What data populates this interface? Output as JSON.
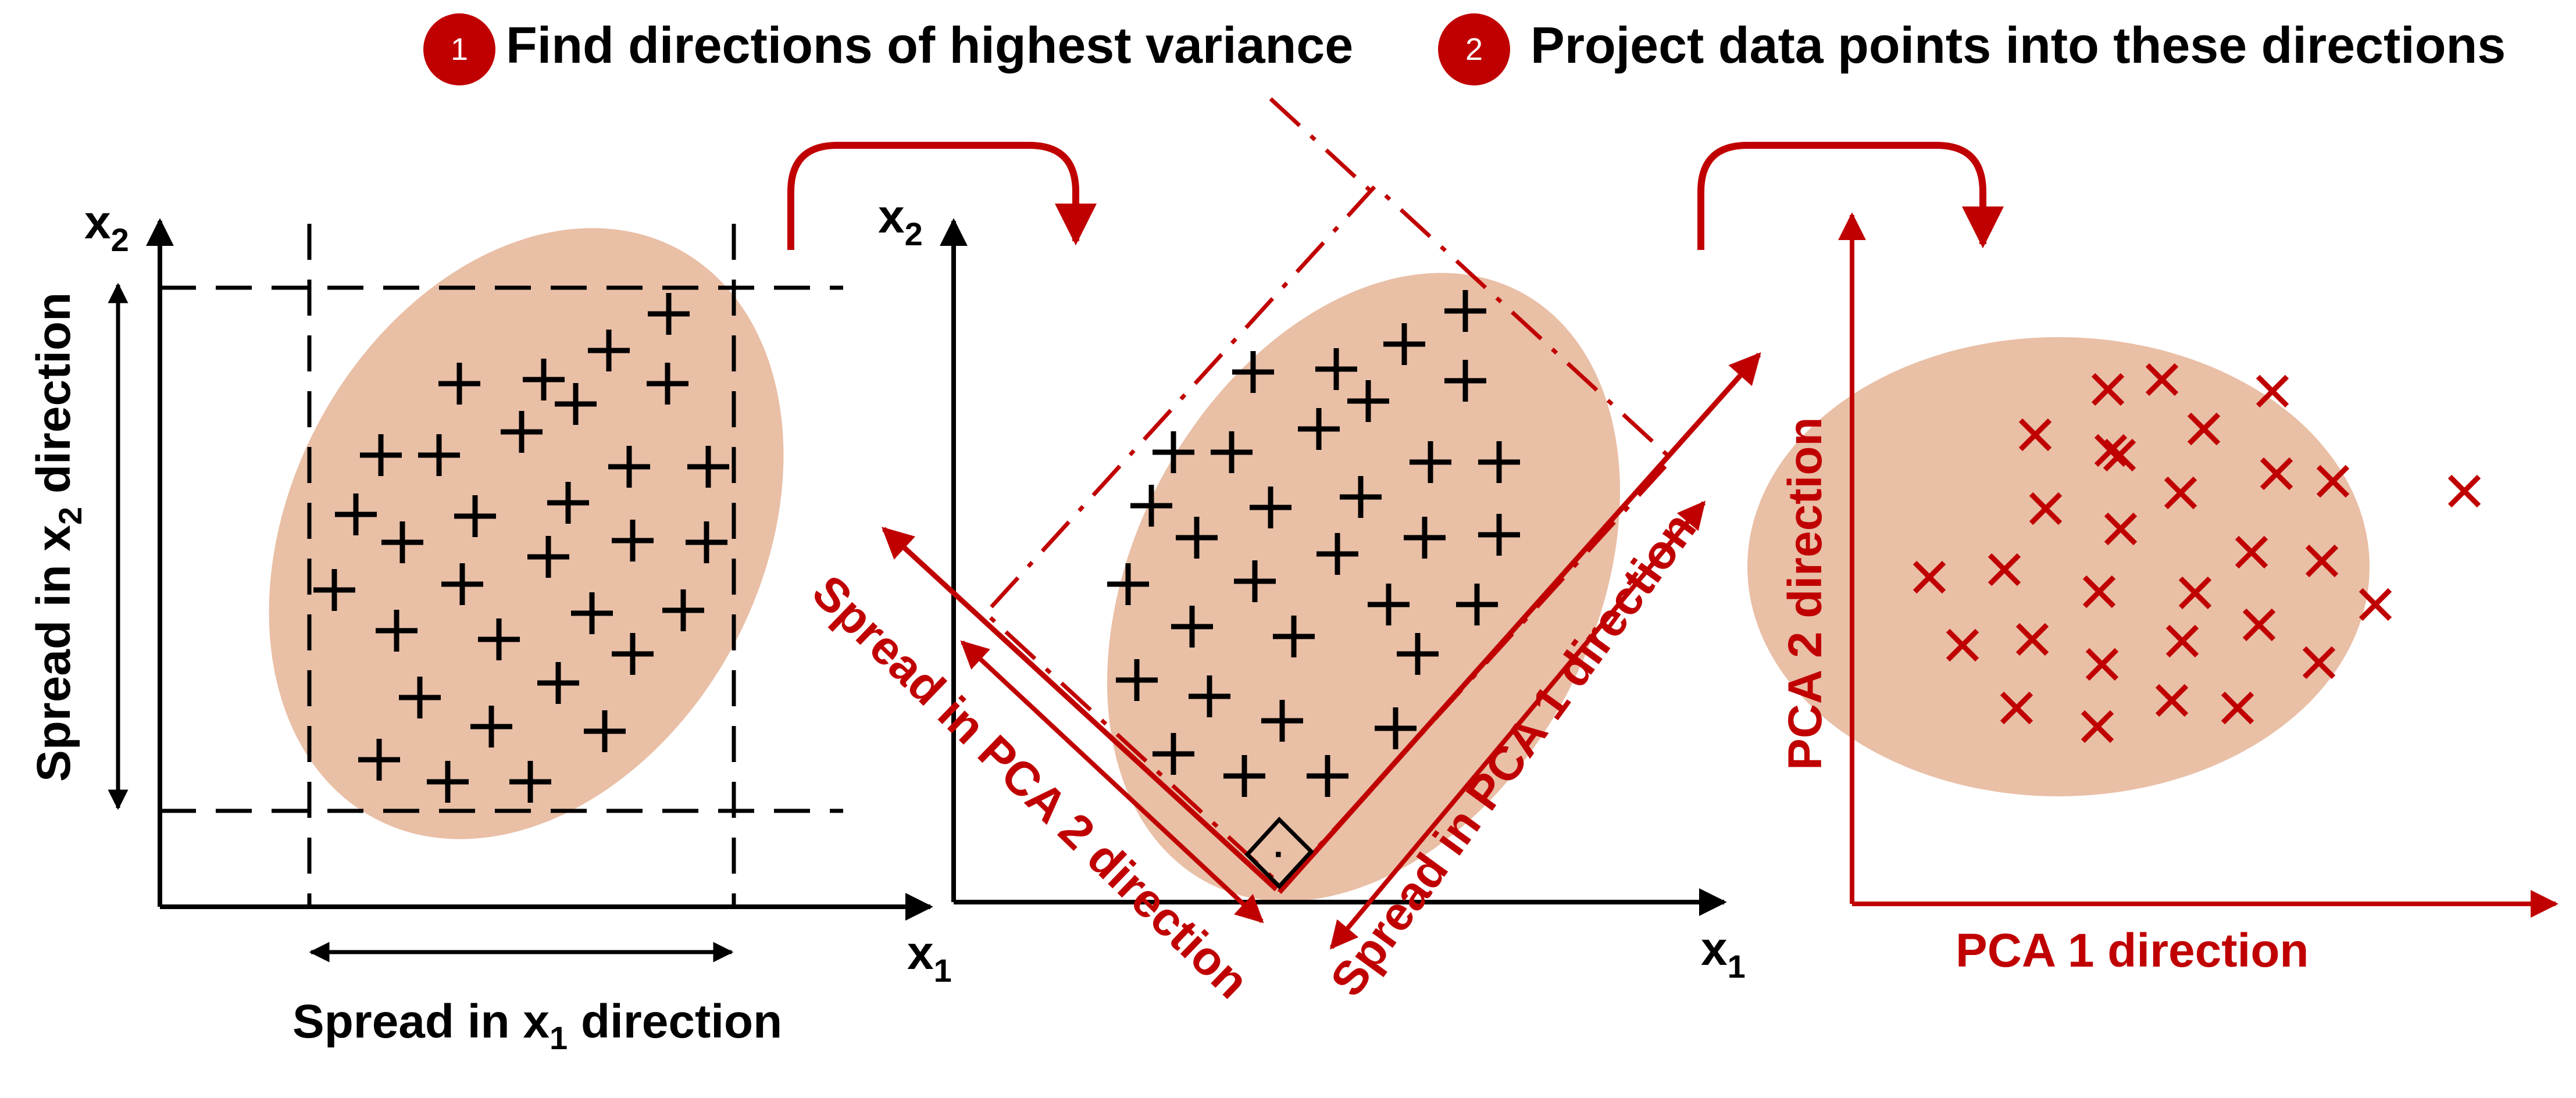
{
  "header": {
    "step1": {
      "number": "1",
      "text": "Find directions of highest variance"
    },
    "step2": {
      "number": "2",
      "text": "Project data points into these directions"
    }
  },
  "panel1": {
    "y_axis_label": "x",
    "y_axis_sub": "2",
    "x_axis_label": "x",
    "x_axis_sub": "1",
    "x_spread_prefix": "Spread in x",
    "x_spread_sub": "1",
    "x_spread_suffix": " direction",
    "y_spread_prefix": "Spread in x",
    "y_spread_sub": "2",
    "y_spread_suffix": " direction"
  },
  "panel2": {
    "y_axis_label": "x",
    "y_axis_sub": "2",
    "x_axis_label": "x",
    "x_axis_sub": "1",
    "pca1_spread_label": "Spread in PCA 1 direction",
    "pca2_spread_label": "Spread in PCA 2 direction",
    "right_angle_dot": "·"
  },
  "panel3": {
    "x_axis_label": "PCA 1 direction",
    "y_axis_label": "PCA 2 direction"
  },
  "colors": {
    "red": "#c00000",
    "blob": "#e9bfa6",
    "black": "#000000"
  },
  "icons": {
    "plus_marker": "plus-marker-icon",
    "cross_marker": "cross-marker-icon",
    "curved_arrow": "curved-arrow-icon"
  }
}
